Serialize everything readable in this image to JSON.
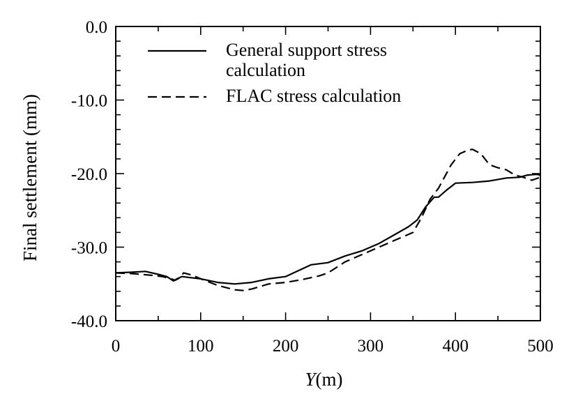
{
  "chart_data": {
    "type": "line",
    "title": "",
    "xlabel_italic": "Y",
    "xlabel_rest": "(m)",
    "ylabel": "Final settlement (mm)",
    "xlim": [
      0,
      500
    ],
    "ylim": [
      -40,
      0
    ],
    "x_ticks": [
      0,
      100,
      200,
      300,
      400,
      500
    ],
    "x_tick_labels": [
      "0",
      "100",
      "200",
      "300",
      "400",
      "500"
    ],
    "y_ticks": [
      0,
      -10,
      -20,
      -30,
      -40
    ],
    "y_tick_labels": [
      "0.0",
      "-10.0",
      "-20.0",
      "-30.0",
      "-40.0"
    ],
    "grid": false,
    "legend_position": "top-left",
    "legend": [
      {
        "series": "general",
        "lines": [
          "General support stress",
          "calculation"
        ]
      },
      {
        "series": "flac",
        "lines": [
          "FLAC stress calculation"
        ]
      }
    ],
    "series": [
      {
        "key": "general",
        "name": "General support stress calculation",
        "style": "solid",
        "color": "#000000",
        "x": [
          0,
          20,
          35,
          50,
          60,
          68,
          72,
          78,
          85,
          100,
          120,
          140,
          160,
          180,
          200,
          215,
          230,
          250,
          270,
          290,
          310,
          330,
          345,
          355,
          365,
          375,
          380,
          390,
          400,
          420,
          440,
          460,
          475,
          485,
          495,
          500
        ],
        "y": [
          -33.5,
          -33.4,
          -33.3,
          -33.7,
          -34.0,
          -34.6,
          -34.3,
          -34.0,
          -34.1,
          -34.3,
          -34.8,
          -35.0,
          -34.8,
          -34.3,
          -34.0,
          -33.2,
          -32.4,
          -32.1,
          -31.2,
          -30.5,
          -29.5,
          -28.2,
          -27.2,
          -26.3,
          -24.5,
          -23.2,
          -23.2,
          -22.2,
          -21.3,
          -21.2,
          -21.0,
          -20.6,
          -20.5,
          -20.2,
          -20.1,
          -20.2
        ]
      },
      {
        "key": "flac",
        "name": "FLAC stress calculation",
        "style": "dashed",
        "color": "#000000",
        "x": [
          0,
          20,
          40,
          55,
          65,
          70,
          75,
          80,
          90,
          100,
          120,
          140,
          150,
          160,
          180,
          200,
          220,
          240,
          250,
          270,
          290,
          310,
          330,
          350,
          360,
          370,
          380,
          395,
          405,
          415,
          420,
          430,
          440,
          450,
          460,
          470,
          480,
          490,
          500
        ],
        "y": [
          -33.5,
          -33.6,
          -33.8,
          -34.0,
          -34.3,
          -34.5,
          -34.2,
          -33.5,
          -33.8,
          -34.3,
          -35.2,
          -35.8,
          -35.9,
          -35.7,
          -35.0,
          -34.8,
          -34.4,
          -33.9,
          -33.5,
          -32.0,
          -31.0,
          -30.0,
          -29.0,
          -28.0,
          -26.0,
          -23.5,
          -22.0,
          -18.8,
          -17.3,
          -16.8,
          -16.7,
          -17.3,
          -18.8,
          -19.2,
          -19.5,
          -20.2,
          -20.5,
          -20.9,
          -20.5
        ]
      }
    ]
  }
}
